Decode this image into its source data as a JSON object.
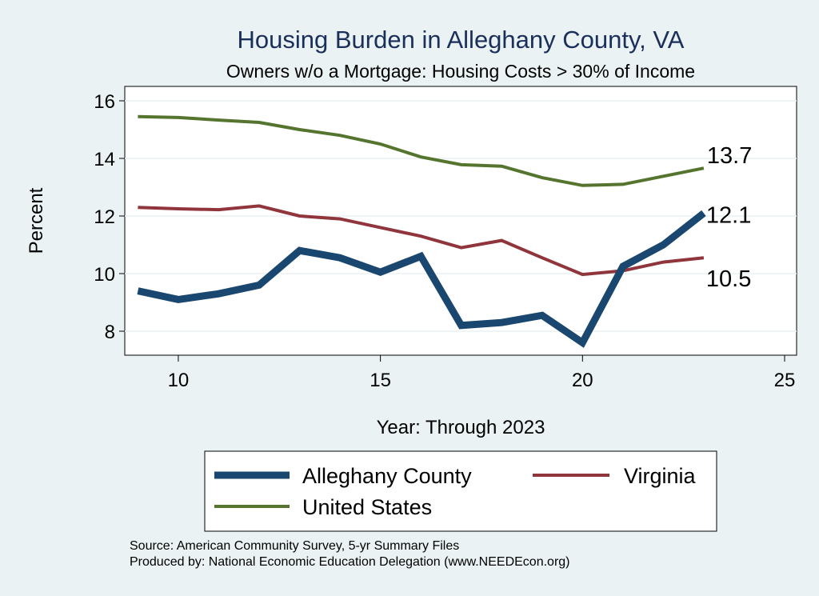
{
  "chart_data": {
    "type": "line",
    "title": "Housing Burden in Alleghany County, VA",
    "subtitle": "Owners w/o a Mortgage: Housing Costs > 30% of Income",
    "xlabel": "Year: Through 2023",
    "ylabel": "Percent",
    "xlim": [
      9,
      25
    ],
    "ylim": [
      7.5,
      16.3
    ],
    "x_ticks": [
      10,
      15,
      20,
      25
    ],
    "y_ticks": [
      8,
      10,
      12,
      14,
      16
    ],
    "grid": "horizontal",
    "legend_placement": "bottom",
    "x": [
      9,
      10,
      11,
      12,
      13,
      14,
      15,
      16,
      17,
      18,
      19,
      20,
      21,
      22,
      23
    ],
    "series": [
      {
        "name": "Alleghany County",
        "color": "#1a476f",
        "values": [
          9.4,
          9.1,
          9.3,
          9.6,
          10.8,
          10.55,
          10.05,
          10.6,
          8.2,
          8.3,
          8.55,
          7.6,
          10.25,
          11.0,
          12.1
        ],
        "end_label": "12.1"
      },
      {
        "name": "Virginia",
        "color": "#90353b",
        "values": [
          12.3,
          12.25,
          12.22,
          12.35,
          12.0,
          11.9,
          11.6,
          11.3,
          10.9,
          11.15,
          10.55,
          9.97,
          10.1,
          10.4,
          10.55
        ],
        "end_label": "10.5"
      },
      {
        "name": "United States",
        "color": "#55752f",
        "values": [
          15.45,
          15.42,
          15.33,
          15.25,
          15.0,
          14.8,
          14.5,
          14.05,
          13.78,
          13.73,
          13.33,
          13.06,
          13.1,
          13.38,
          13.66
        ],
        "end_label": "13.7"
      }
    ]
  },
  "footer": {
    "source": "Source: American Community Survey, 5-yr Summary Files",
    "produced_by": "Produced by: National Economic Education Delegation (www.NEEDEcon.org)"
  }
}
